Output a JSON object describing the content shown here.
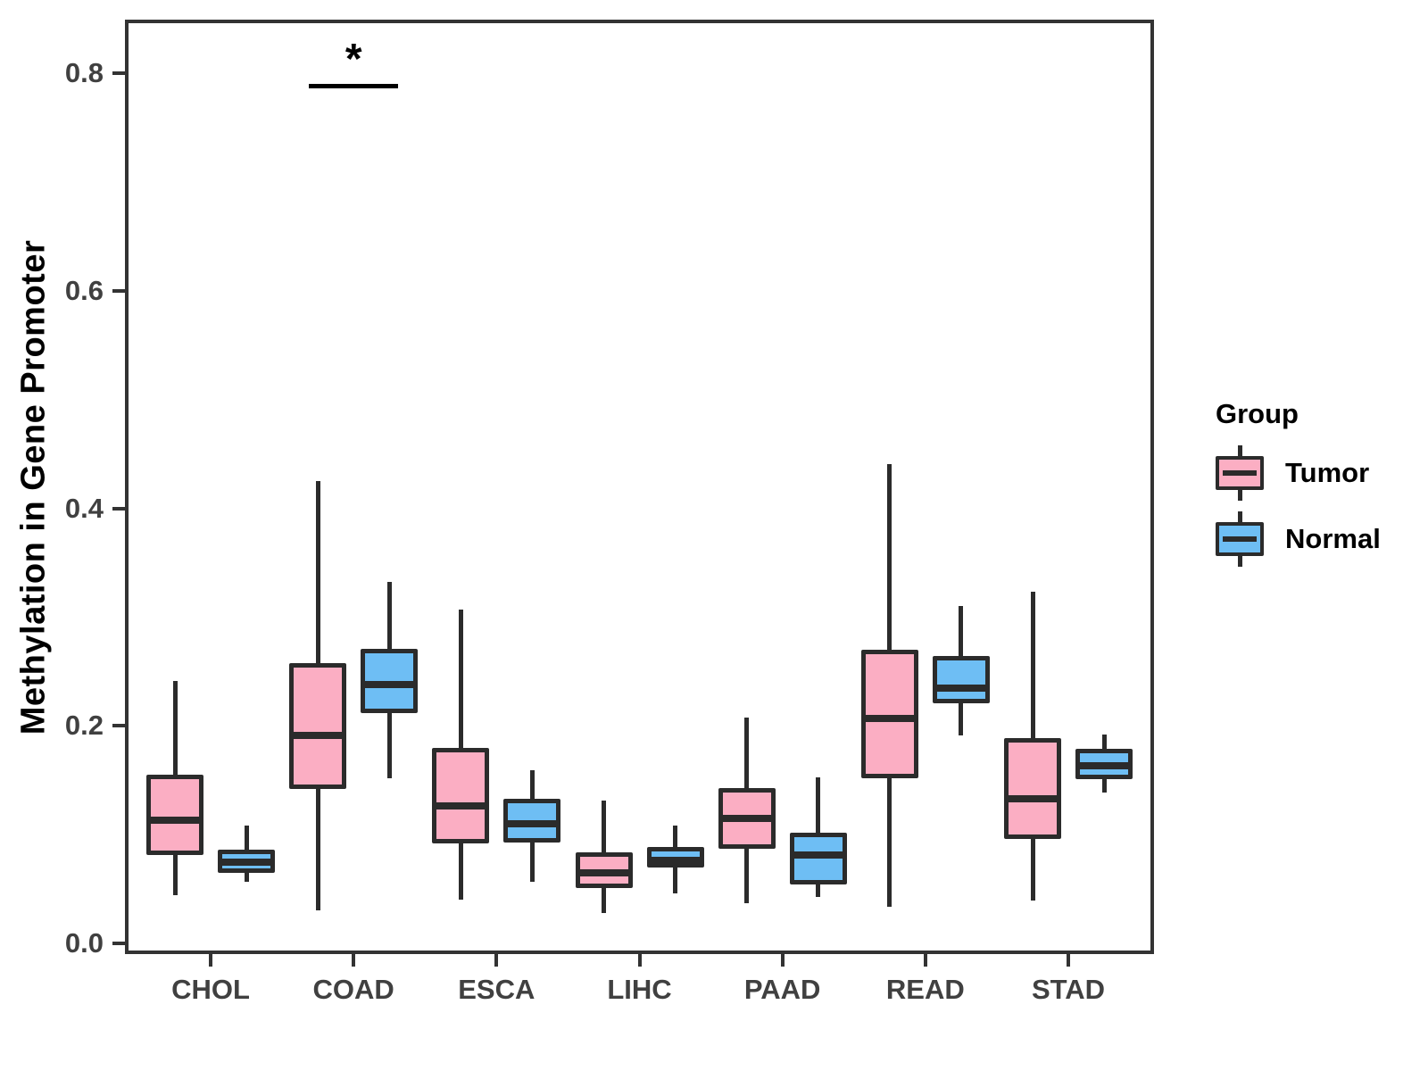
{
  "figure": {
    "y_axis_title": "Methylation in Gene Promoter",
    "legend": {
      "title": "Group",
      "entries": [
        {
          "label": "Tumor",
          "color": "#FBAEC3"
        },
        {
          "label": "Normal",
          "color": "#6EBEF4"
        }
      ]
    }
  },
  "chart_data": {
    "type": "boxplot",
    "title": "",
    "xlabel": "",
    "ylabel": "Methylation in Gene Promoter",
    "categories": [
      "CHOL",
      "COAD",
      "ESCA",
      "LIHC",
      "PAAD",
      "READ",
      "STAD"
    ],
    "y_ticks": [
      0.0,
      0.2,
      0.4,
      0.6,
      0.8
    ],
    "y_tick_labels": [
      "0.0",
      "0.2",
      "0.4",
      "0.6",
      "0.8"
    ],
    "ylim": [
      0.0,
      0.86
    ],
    "grid": "off",
    "legend_position": "right",
    "series": [
      {
        "name": "Tumor",
        "color": "#FBAEC3",
        "boxes": [
          {
            "min": 0.044,
            "q1": 0.081,
            "median": 0.113,
            "q3": 0.155,
            "max": 0.241
          },
          {
            "min": 0.03,
            "q1": 0.142,
            "median": 0.191,
            "q3": 0.258,
            "max": 0.425
          },
          {
            "min": 0.04,
            "q1": 0.092,
            "median": 0.126,
            "q3": 0.18,
            "max": 0.307
          },
          {
            "min": 0.028,
            "q1": 0.051,
            "median": 0.065,
            "q3": 0.084,
            "max": 0.131
          },
          {
            "min": 0.037,
            "q1": 0.087,
            "median": 0.115,
            "q3": 0.143,
            "max": 0.208
          },
          {
            "min": 0.034,
            "q1": 0.152,
            "median": 0.207,
            "q3": 0.27,
            "max": 0.441
          },
          {
            "min": 0.039,
            "q1": 0.096,
            "median": 0.133,
            "q3": 0.189,
            "max": 0.323
          }
        ]
      },
      {
        "name": "Normal",
        "color": "#6EBEF4",
        "boxes": [
          {
            "min": 0.057,
            "q1": 0.065,
            "median": 0.075,
            "q3": 0.086,
            "max": 0.108
          },
          {
            "min": 0.152,
            "q1": 0.212,
            "median": 0.238,
            "q3": 0.271,
            "max": 0.332
          },
          {
            "min": 0.057,
            "q1": 0.093,
            "median": 0.11,
            "q3": 0.133,
            "max": 0.159
          },
          {
            "min": 0.046,
            "q1": 0.07,
            "median": 0.076,
            "q3": 0.089,
            "max": 0.108
          },
          {
            "min": 0.043,
            "q1": 0.054,
            "median": 0.081,
            "q3": 0.102,
            "max": 0.153
          },
          {
            "min": 0.191,
            "q1": 0.221,
            "median": 0.235,
            "q3": 0.264,
            "max": 0.31
          },
          {
            "min": 0.139,
            "q1": 0.151,
            "median": 0.163,
            "q3": 0.179,
            "max": 0.192
          }
        ]
      }
    ],
    "annotations": [
      {
        "type": "significance",
        "label": "*",
        "category": "COAD",
        "y": 0.79
      }
    ]
  }
}
